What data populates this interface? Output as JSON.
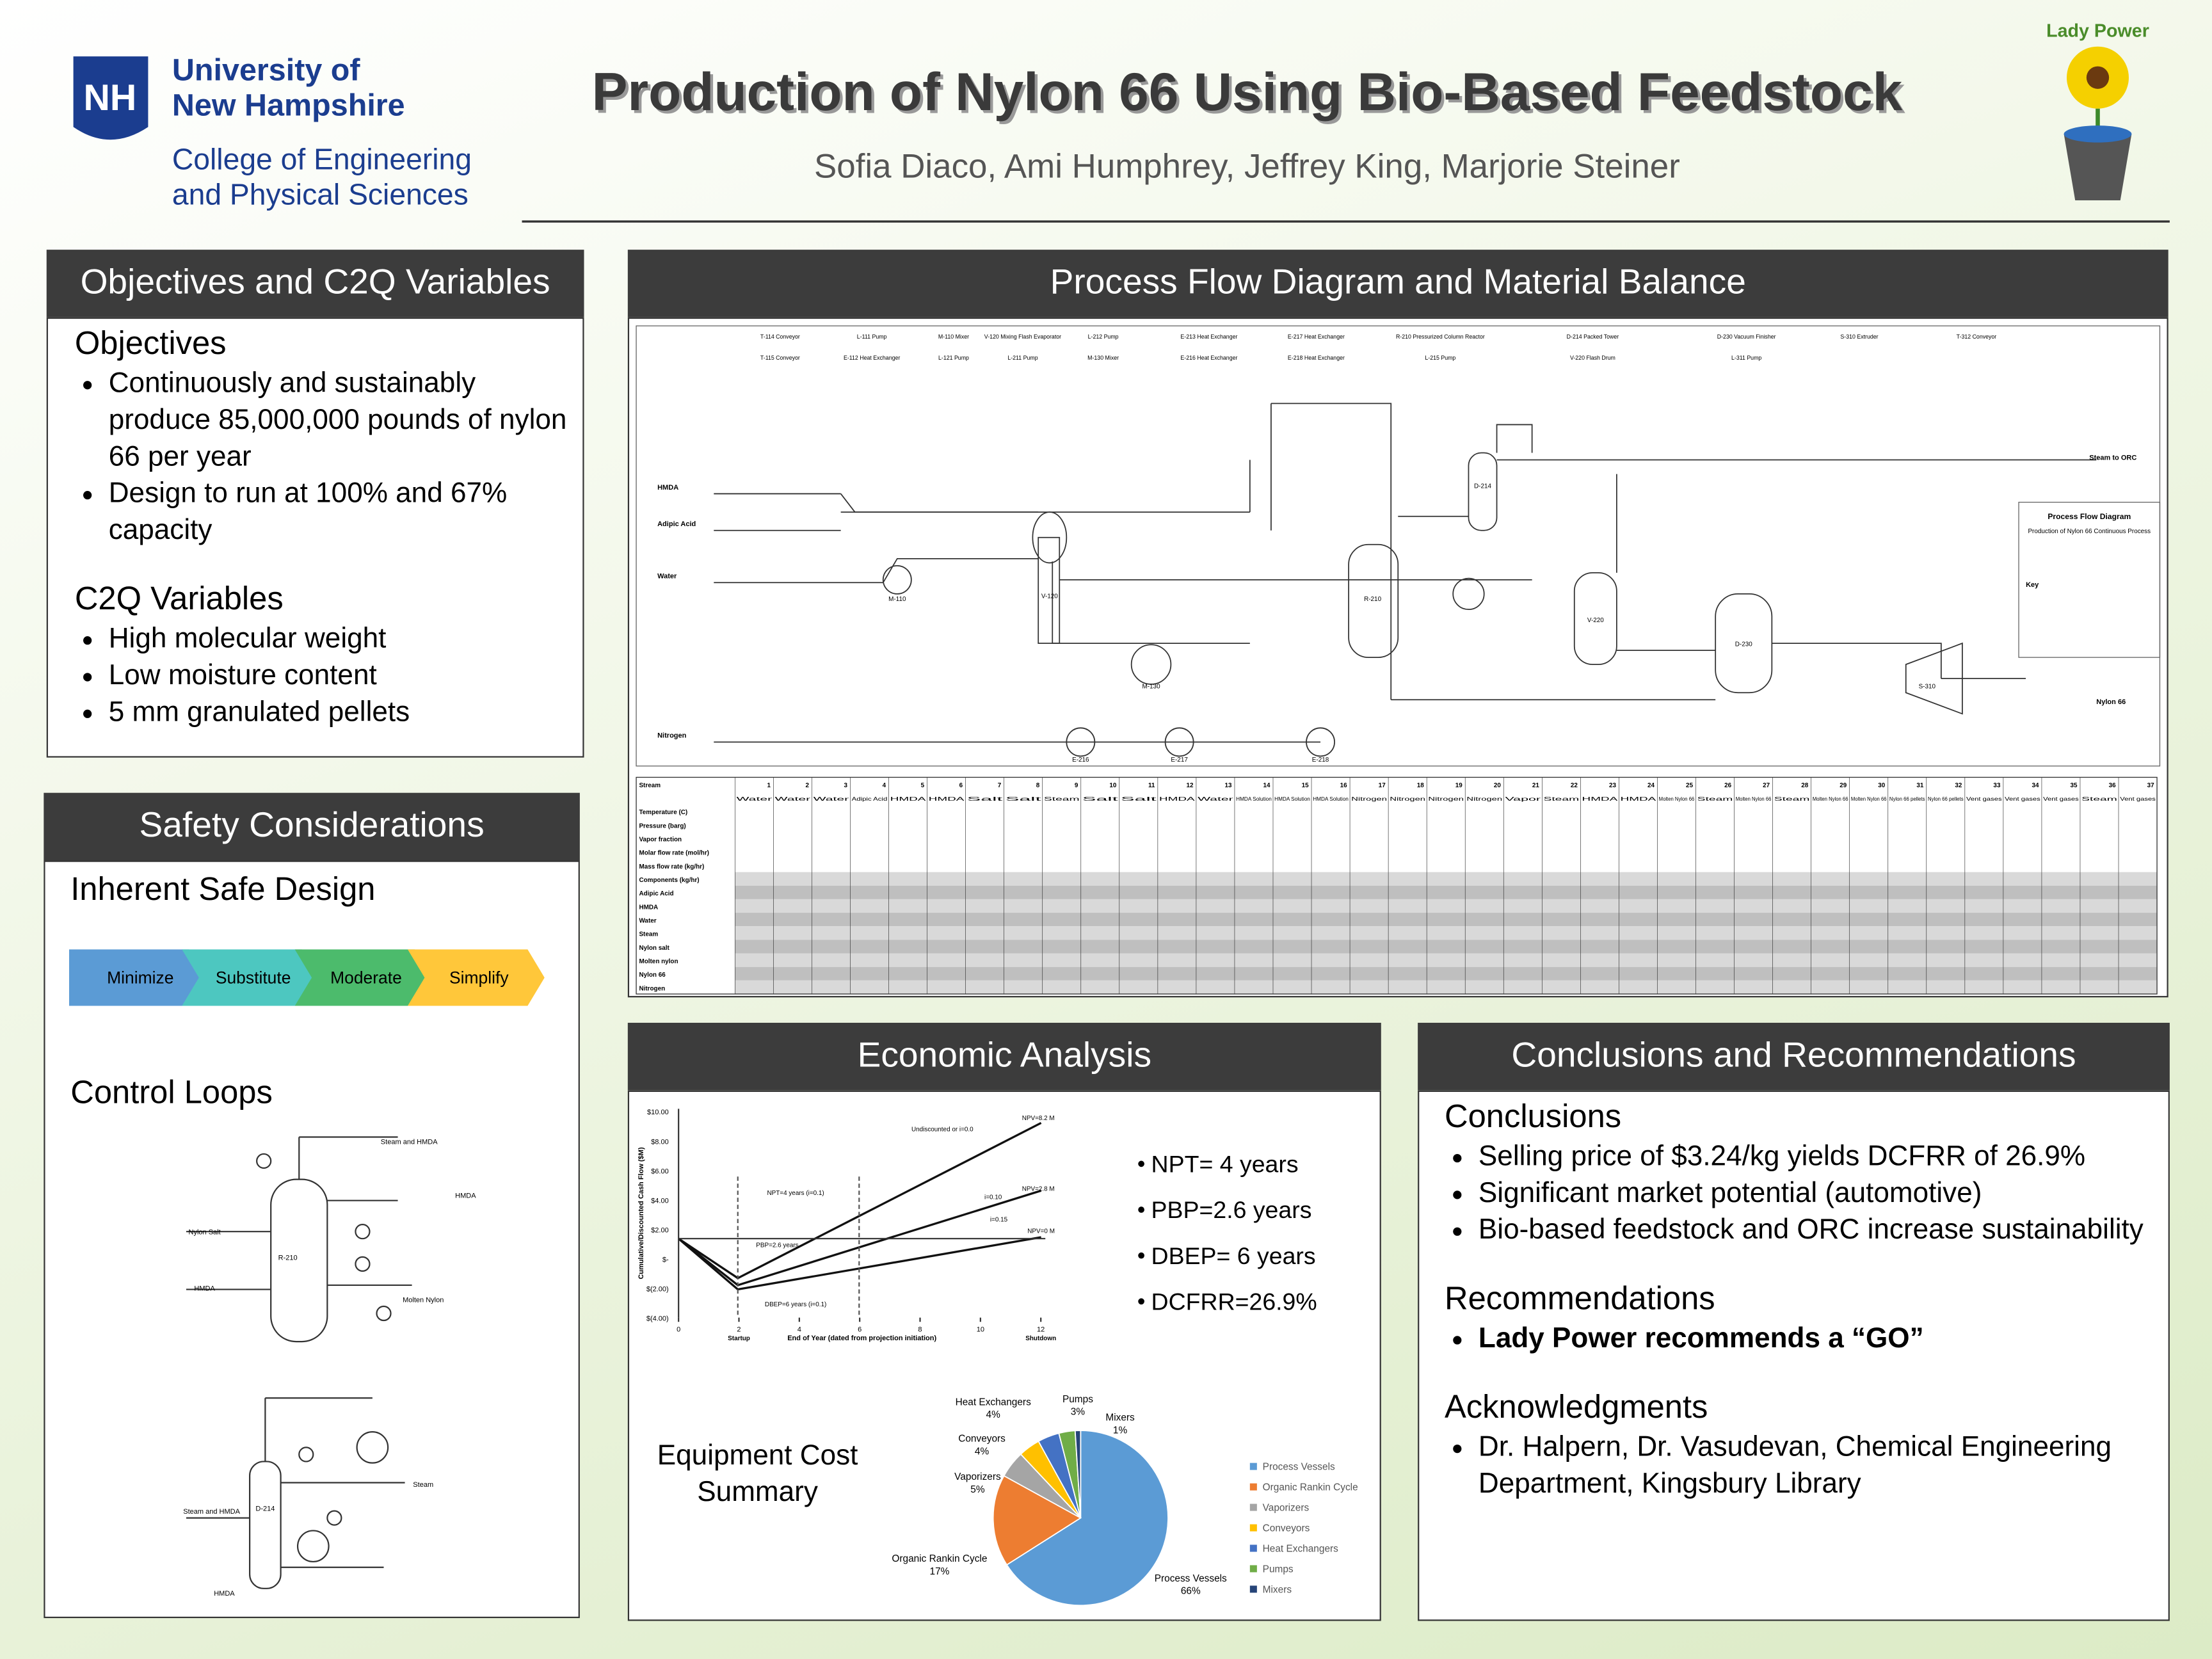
{
  "header": {
    "logo_mark": "NH",
    "university": [
      "University of",
      "New Hampshire"
    ],
    "college": [
      "College of Engineering",
      "and Physical Sciences"
    ],
    "title": "Production of Nylon 66 Using Bio-Based Feedstock",
    "authors": "Sofia Diaco, Ami Humphrey, Jeffrey King, Marjorie Steiner",
    "team": "Lady Power"
  },
  "objectives": {
    "heading": "Objectives and C2Q Variables",
    "sections": [
      {
        "title": "Objectives",
        "items": [
          "Continuously and sustainably produce 85,000,000 pounds of nylon 66 per year",
          "Design to run at 100% and 67% capacity"
        ]
      },
      {
        "title": "C2Q Variables",
        "items": [
          "High molecular weight",
          "Low moisture content",
          "5 mm granulated pellets"
        ]
      }
    ]
  },
  "safety": {
    "heading": "Safety Considerations",
    "inherent": "Inherent Safe Design",
    "steps": [
      "Minimize",
      "Substitute",
      "Moderate",
      "Simplify"
    ],
    "control": "Control Loops",
    "loop1": [
      "Steam and HMDA",
      "HMDA",
      "Nylon Salt",
      "R-210",
      "HMDA",
      "Molten Nylon"
    ],
    "loop2": [
      "D-214",
      "Steam",
      "Steam and HMDA",
      "HMDA"
    ]
  },
  "pfd": {
    "heading": "Process Flow Diagram and Material Balance",
    "equipment": [
      [
        "T-114 Conveyor",
        "T-115 Conveyor"
      ],
      [
        "L-111 Pump",
        "E-112 Heat Exchanger"
      ],
      [
        "M-110 Mixer",
        "L-121 Pump"
      ],
      [
        "V-120 Mixing Flash Evaporator",
        "L-211 Pump"
      ],
      [
        "L-212 Pump",
        "M-130 Mixer"
      ],
      [
        "E-213 Heat Exchanger",
        "E-216 Heat Exchanger"
      ],
      [
        "E-217 Heat Exchanger",
        "E-218 Heat Exchanger"
      ],
      [
        "R-210 Pressurized Column Reactor",
        "L-215 Pump"
      ],
      [
        "D-214 Packed Tower",
        "V-220 Flash Drum"
      ],
      [
        "D-230 Vacuum Finisher",
        "L-311 Pump"
      ],
      [
        "S-310 Extruder"
      ],
      [
        "T-312 Conveyor"
      ]
    ],
    "streams_in": [
      "HMDA",
      "Adipic Acid",
      "Water",
      "Nitrogen"
    ],
    "streams_out": [
      "Steam to ORC",
      "Nylon 66"
    ],
    "units": [
      "M-110",
      "V-120",
      "M-130",
      "R-210",
      "D-214",
      "V-220",
      "D-230",
      "S-310",
      "E-216",
      "E-217",
      "E-218"
    ],
    "key_title": "Process Flow Diagram",
    "key_subtitle": "Production of Nylon 66 Continuous Process",
    "key": "Key",
    "table": {
      "stream_label": "Stream",
      "streams": [
        "1",
        "2",
        "3",
        "4",
        "5",
        "6",
        "7",
        "8",
        "9",
        "10",
        "11",
        "12",
        "13",
        "14",
        "15",
        "16",
        "17",
        "18",
        "19",
        "20",
        "21",
        "22",
        "23",
        "24",
        "25",
        "26",
        "27",
        "28",
        "29",
        "30",
        "31",
        "32",
        "33",
        "34",
        "35",
        "36",
        "37"
      ],
      "names": [
        "Water",
        "Water",
        "Water",
        "Adipic Acid",
        "HMDA",
        "HMDA",
        "Salt",
        "Salt",
        "Steam",
        "Salt",
        "Salt",
        "HMDA",
        "Water",
        "HMDA Solution",
        "HMDA Solution",
        "HMDA Solution",
        "Nitrogen",
        "Nitrogen",
        "Nitrogen",
        "Nitrogen",
        "Vapor",
        "Steam",
        "HMDA",
        "HMDA",
        "Molten Nylon 66",
        "Steam",
        "Molten Nylon 66",
        "Steam",
        "Molten Nylon 66",
        "Molten Nylon 66",
        "Nylon 66 pellets",
        "Nylon 66 pellets",
        "Vent gases",
        "Vent gases",
        "Vent gases",
        "Steam",
        "Vent gases"
      ],
      "rows": [
        "Temperature (C)",
        "Pressure (barg)",
        "Vapor fraction",
        "Molar flow rate (mol/hr)",
        "Mass flow rate (kg/hr)",
        "Components (kg/hr)",
        "Adipic Acid",
        "HMDA",
        "Water",
        "Steam",
        "Nylon salt",
        "Molten nylon",
        "Nylon 66",
        "Nitrogen"
      ]
    }
  },
  "economic": {
    "heading": "Economic Analysis",
    "cash_flow": {
      "ylabel": "Cumulative/Discounted Cash Flow ($M)",
      "xlabel": "End of Year (dated from projection initiation)",
      "yticks": [
        "$10.00",
        "$8.00",
        "$6.00",
        "$4.00",
        "$2.00",
        "$-",
        "$(2.00)",
        "$(4.00)"
      ],
      "xticks": [
        0,
        2,
        4,
        6,
        8,
        10,
        12
      ],
      "x_notes": [
        {
          "value": 2,
          "label": "Startup"
        },
        {
          "value": 12,
          "label": "Shutdown"
        }
      ],
      "annotations": [
        "Undiscounted or i=0.0",
        "NPV=8.2 M",
        "i=0.10",
        "NPV=2.8 M",
        "i=0.15",
        "NPV=0 M",
        "NPT=4 years (i=0.1)",
        "PBP=2.6 years",
        "DBEP=6 years (i=0.1)"
      ]
    },
    "metrics": [
      "NPT= 4 years",
      "PBP=2.6 years",
      "DBEP= 6 years",
      "DCFRR=26.9%"
    ],
    "pie_title": "Equipment Cost Summary",
    "pie": {
      "type": "pie",
      "labels": [
        "Process Vessels",
        "Organic Rankin Cycle",
        "Vaporizers",
        "Conveyors",
        "Heat Exchangers",
        "Pumps",
        "Mixers"
      ],
      "values": [
        66,
        17,
        5,
        4,
        4,
        3,
        1
      ],
      "value_labels": [
        "66%",
        "17%",
        "5%",
        "4%",
        "4%",
        "3%",
        "1%"
      ],
      "colors": [
        "#5b9bd5",
        "#ed7d31",
        "#a5a5a5",
        "#ffc000",
        "#4472c4",
        "#70ad47",
        "#264478"
      ]
    }
  },
  "conclusions": {
    "heading": "Conclusions and Recommendations",
    "sections": [
      {
        "title": "Conclusions",
        "items": [
          "Selling price of $3.24/kg yields DCFRR of 26.9%",
          "Significant market potential (automotive)",
          "Bio-based feedstock and ORC increase sustainability"
        ]
      },
      {
        "title": "Recommendations",
        "items": [
          "Lady Power recommends a “GO”"
        ],
        "bold": true
      },
      {
        "title": "Acknowledgments",
        "items": [
          "Dr. Halpern, Dr. Vasudevan, Chemical Engineering Department, Kingsbury Library"
        ]
      }
    ]
  }
}
